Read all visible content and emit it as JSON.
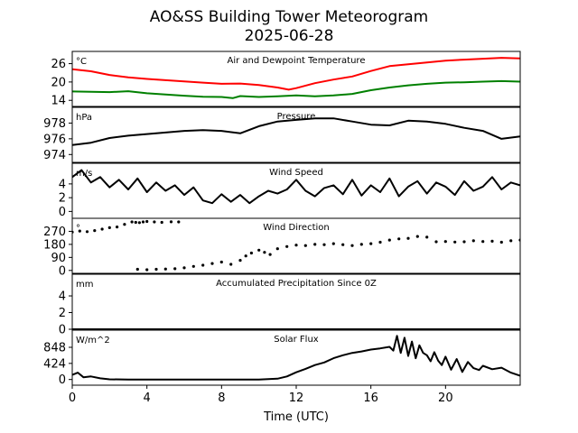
{
  "figure": {
    "title_line1": "AO&SS Building Tower Meteorogram",
    "title_line2": "2025-06-28",
    "xlabel": "Time (UTC)"
  },
  "chart_data": [
    {
      "type": "line",
      "title": "Air and Dewpoint Temperature",
      "unit": "°C",
      "ylim": [
        12,
        30
      ],
      "yticks": [
        14,
        20,
        26
      ],
      "series": [
        {
          "color": "#ff0000",
          "x": [
            0,
            1,
            2,
            3,
            4,
            5,
            6,
            7,
            8,
            9,
            10,
            11,
            11.6,
            12,
            13,
            14,
            15,
            16,
            17,
            18,
            19,
            20,
            21,
            22,
            23,
            24
          ],
          "y": [
            24.2,
            23.5,
            22.3,
            21.5,
            21,
            20.6,
            20.2,
            19.8,
            19.4,
            19.5,
            19,
            18.2,
            17.5,
            18,
            19.6,
            20.8,
            21.8,
            23.6,
            25.2,
            25.8,
            26.4,
            27,
            27.3,
            27.6,
            27.9,
            27.7
          ]
        },
        {
          "color": "#008000",
          "x": [
            0,
            1,
            2,
            3,
            4,
            5,
            6,
            7,
            8,
            8.6,
            9,
            10,
            11,
            12,
            13,
            14,
            15,
            16,
            17,
            18,
            19,
            20,
            21,
            22,
            23,
            24
          ],
          "y": [
            16.9,
            16.8,
            16.7,
            17,
            16.3,
            15.9,
            15.5,
            15.2,
            15.1,
            14.7,
            15.4,
            15.1,
            15.3,
            15.6,
            15.3,
            15.6,
            16.1,
            17.3,
            18.2,
            18.9,
            19.4,
            19.8,
            19.9,
            20.1,
            20.3,
            20.1
          ]
        }
      ]
    },
    {
      "type": "line",
      "title": "Pressure",
      "unit": "hPa",
      "ylim": [
        973,
        980
      ],
      "yticks": [
        974,
        976,
        978
      ],
      "series": [
        {
          "color": "#000000",
          "x": [
            0,
            1,
            2,
            3,
            4,
            5,
            6,
            7,
            8,
            9,
            10,
            11,
            12,
            13,
            14,
            15,
            16,
            17,
            18,
            19,
            20,
            21,
            22,
            23,
            24
          ],
          "y": [
            975.2,
            975.5,
            976.1,
            976.4,
            976.6,
            976.8,
            977.0,
            977.1,
            977.0,
            976.7,
            977.6,
            978.2,
            978.4,
            978.6,
            978.6,
            978.2,
            977.8,
            977.7,
            978.3,
            978.2,
            977.9,
            977.4,
            977.0,
            976.0,
            976.3
          ]
        }
      ]
    },
    {
      "type": "line",
      "title": "Wind Speed",
      "unit": "m/s",
      "ylim": [
        -1,
        7
      ],
      "yticks": [
        0,
        2,
        4
      ],
      "series": [
        {
          "color": "#000000",
          "x": [
            0,
            0.5,
            1,
            1.5,
            2,
            2.5,
            3,
            3.5,
            4,
            4.5,
            5,
            5.5,
            6,
            6.5,
            7,
            7.5,
            8,
            8.5,
            9,
            9.5,
            10,
            10.5,
            11,
            11.5,
            12,
            12.5,
            13,
            13.5,
            14,
            14.5,
            15,
            15.5,
            16,
            16.5,
            17,
            17.5,
            18,
            18.5,
            19,
            19.5,
            20,
            20.5,
            21,
            21.5,
            22,
            22.5,
            23,
            23.5,
            24
          ],
          "y": [
            5.0,
            6.0,
            4.2,
            5.0,
            3.5,
            4.6,
            3.2,
            4.8,
            2.8,
            4.2,
            3.0,
            3.8,
            2.4,
            3.5,
            1.6,
            1.2,
            2.5,
            1.4,
            2.4,
            1.2,
            2.2,
            3.0,
            2.6,
            3.2,
            4.6,
            3.0,
            2.2,
            3.4,
            3.8,
            2.5,
            4.6,
            2.3,
            3.8,
            2.8,
            4.8,
            2.2,
            3.6,
            4.4,
            2.6,
            4.2,
            3.6,
            2.4,
            4.4,
            3.0,
            3.6,
            5.0,
            3.2,
            4.2,
            3.8
          ]
        }
      ]
    },
    {
      "type": "scatter",
      "title": "Wind Direction",
      "unit": "°",
      "ylim": [
        -20,
        360
      ],
      "yticks": [
        0,
        90,
        180,
        270
      ],
      "series": [
        {
          "color": "#000000",
          "x": [
            0,
            0.4,
            0.8,
            1.2,
            1.6,
            2,
            2.4,
            2.8,
            3.2,
            3.4,
            3.6,
            3.8,
            4,
            4.4,
            4.8,
            5.3,
            5.7,
            3.5,
            4,
            4.5,
            5,
            5.5,
            6,
            6.5,
            7,
            7.5,
            8,
            8.5,
            9,
            9.3,
            9.6,
            10,
            10.3,
            10.6,
            11,
            11.5,
            12,
            12.5,
            13,
            13.5,
            14,
            14.5,
            15,
            15.5,
            16,
            16.5,
            17,
            17.5,
            18,
            18.5,
            19,
            19.5,
            20,
            20.5,
            21,
            21.5,
            22,
            22.5,
            23,
            23.5,
            24
          ],
          "y": [
            265,
            272,
            268,
            275,
            285,
            295,
            300,
            318,
            335,
            332,
            330,
            335,
            338,
            335,
            332,
            336,
            335,
            8,
            5,
            8,
            10,
            12,
            18,
            28,
            36,
            48,
            58,
            42,
            70,
            100,
            120,
            140,
            125,
            110,
            150,
            165,
            175,
            172,
            180,
            178,
            185,
            178,
            172,
            180,
            185,
            195,
            210,
            218,
            222,
            235,
            230,
            198,
            200,
            196,
            198,
            205,
            200,
            202,
            195,
            205,
            210
          ]
        }
      ]
    },
    {
      "type": "line",
      "title": "Accumulated Precipitation Since 0Z",
      "unit": "mm",
      "ylim": [
        0,
        6.6
      ],
      "yticks": [
        0,
        2,
        4
      ],
      "series": [
        {
          "color": "#000000",
          "x": [
            0,
            24
          ],
          "y": [
            0,
            0
          ]
        }
      ]
    },
    {
      "type": "line",
      "title": "Solar Flux",
      "unit": "W/m^2",
      "ylim": [
        -150,
        1300
      ],
      "yticks": [
        0,
        424,
        848
      ],
      "series": [
        {
          "color": "#000000",
          "x": [
            0,
            0.3,
            0.6,
            1,
            1.5,
            2,
            3,
            4,
            5,
            6,
            7,
            8,
            9,
            10,
            11,
            11.5,
            12,
            12.5,
            13,
            13.5,
            14,
            14.5,
            15,
            15.5,
            16,
            16.5,
            17,
            17.2,
            17.4,
            17.6,
            17.8,
            18,
            18.2,
            18.4,
            18.6,
            18.8,
            19,
            19.2,
            19.4,
            19.6,
            19.8,
            20,
            20.3,
            20.6,
            20.9,
            21.2,
            21.5,
            21.8,
            22,
            22.5,
            23,
            23.5,
            24
          ],
          "y": [
            120,
            180,
            60,
            80,
            30,
            5,
            0,
            0,
            0,
            0,
            0,
            0,
            0,
            0,
            20,
            80,
            190,
            280,
            380,
            450,
            560,
            640,
            700,
            740,
            790,
            820,
            860,
            760,
            1150,
            700,
            1100,
            620,
            1000,
            560,
            900,
            700,
            640,
            480,
            720,
            500,
            380,
            600,
            260,
            540,
            200,
            460,
            300,
            250,
            360,
            270,
            310,
            180,
            100
          ]
        }
      ]
    }
  ],
  "xaxis": {
    "xlim": [
      0,
      24
    ],
    "ticks": [
      0,
      4,
      8,
      12,
      16,
      20
    ]
  }
}
